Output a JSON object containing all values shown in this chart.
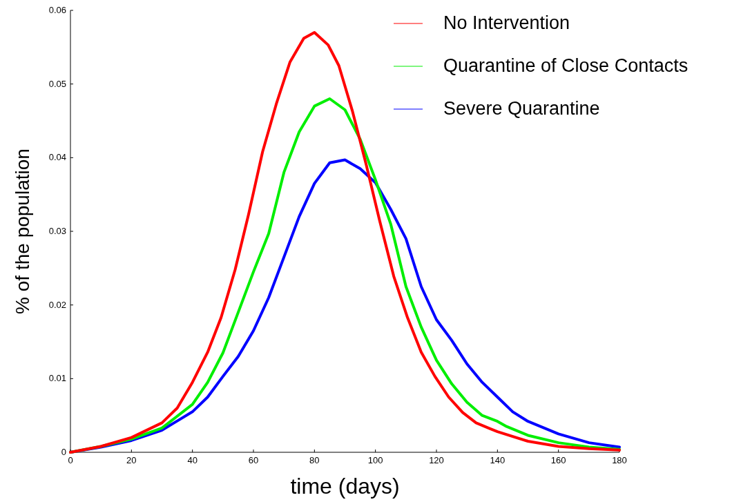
{
  "chart_data": {
    "type": "line",
    "xlabel": "time (days)",
    "ylabel": "% of the population",
    "xlim": [
      0,
      180
    ],
    "ylim": [
      0,
      0.06
    ],
    "xticks": [
      0,
      20,
      40,
      60,
      80,
      100,
      120,
      140,
      160,
      180
    ],
    "yticks": [
      0,
      0.01,
      0.02,
      0.03,
      0.04,
      0.05,
      0.06
    ],
    "grid": false,
    "legend": "top right",
    "marker": "none",
    "line_style": "solid",
    "series": [
      {
        "name": "No Intervention",
        "color": "#ff0000",
        "x": [
          0,
          10,
          20,
          30,
          35,
          40,
          45,
          49.4,
          54,
          58.4,
          63,
          67.5,
          72,
          76.5,
          80,
          84.5,
          88,
          92.4,
          97,
          101.4,
          106,
          110.5,
          115,
          119.5,
          124,
          128.6,
          133,
          137.6,
          140,
          150,
          160,
          170,
          180
        ],
        "values": [
          0,
          0.0008,
          0.002,
          0.004,
          0.006,
          0.0095,
          0.0136,
          0.0183,
          0.0248,
          0.0323,
          0.0408,
          0.0473,
          0.053,
          0.0562,
          0.057,
          0.0553,
          0.0525,
          0.0464,
          0.039,
          0.0314,
          0.0239,
          0.0183,
          0.0136,
          0.0103,
          0.0075,
          0.0054,
          0.004,
          0.0032,
          0.0028,
          0.0015,
          0.0008,
          0.0005,
          0.0003
        ]
      },
      {
        "name": "Quarantine of Close Contacts",
        "color": "#00ee00",
        "x": [
          0,
          10,
          20,
          30,
          40,
          45,
          50,
          55,
          60,
          65,
          70,
          75,
          80,
          85,
          90,
          95,
          100,
          105,
          110,
          115,
          120,
          125,
          130,
          135,
          140,
          143,
          150,
          160,
          170,
          180
        ],
        "values": [
          0,
          0.0008,
          0.0018,
          0.0033,
          0.0065,
          0.0095,
          0.0135,
          0.019,
          0.0245,
          0.0297,
          0.038,
          0.0435,
          0.047,
          0.048,
          0.0465,
          0.0425,
          0.037,
          0.031,
          0.0225,
          0.017,
          0.0125,
          0.0093,
          0.0068,
          0.005,
          0.0042,
          0.0035,
          0.0023,
          0.0013,
          0.0007,
          0.0004
        ]
      },
      {
        "name": "Severe Quarantine",
        "color": "#0000ff",
        "x": [
          0,
          10,
          20,
          30,
          40,
          45,
          50,
          55,
          60,
          65,
          70,
          75,
          80,
          85,
          90,
          95,
          100,
          105,
          110,
          115,
          120,
          125,
          130,
          135,
          140,
          145,
          150,
          160,
          170,
          180
        ],
        "values": [
          0,
          0.0007,
          0.0016,
          0.003,
          0.0055,
          0.0075,
          0.0103,
          0.013,
          0.0165,
          0.021,
          0.0265,
          0.032,
          0.0365,
          0.0393,
          0.0397,
          0.0385,
          0.0366,
          0.033,
          0.029,
          0.0225,
          0.018,
          0.0152,
          0.012,
          0.0095,
          0.0075,
          0.0055,
          0.0042,
          0.0025,
          0.0013,
          0.0007
        ]
      }
    ]
  }
}
